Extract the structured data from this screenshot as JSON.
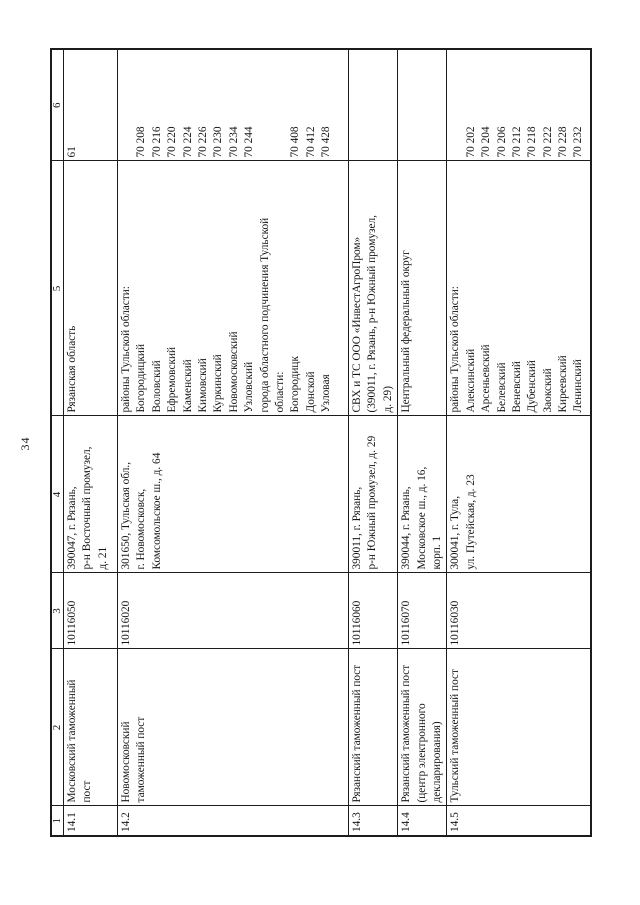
{
  "page": {
    "number": "34"
  },
  "table": {
    "headers": [
      "1",
      "2",
      "3",
      "4",
      "5",
      "6"
    ],
    "rows": [
      {
        "num": "14.1",
        "name_lines": [
          "Московский таможенный",
          "пост"
        ],
        "code": "10116050",
        "address_lines": [
          "390047, г. Рязань,",
          "р-н Восточный промузел,",
          "д. 21"
        ],
        "region_lines": [
          "Рязанская область"
        ],
        "okato_lines": [
          "61"
        ]
      },
      {
        "num": "14.2",
        "name_lines": [
          "Новомосковский",
          "таможенный пост"
        ],
        "code": "10116020",
        "address_lines": [
          "301650, Тульская обл.,",
          "г. Новомосковск,",
          "Комсомольское ш., д. 64"
        ],
        "region_lines": [
          "районы Тульской области:",
          "Богородицкий",
          "Воловский",
          "Ефремовский",
          "Каменский",
          "Кимовский",
          "Куркинский",
          "Новомосковский",
          "Узловский",
          "города областного подчинения Тульской",
          "области:",
          "Богородицк",
          "Донской",
          "Узловая"
        ],
        "okato_lines": [
          "",
          "70 208",
          "70 216",
          "70 220",
          "70 224",
          "70 226",
          "70 230",
          "70 234",
          "70 244",
          "",
          "",
          "70 408",
          "70 412",
          "70 428"
        ]
      },
      {
        "num": "14.3",
        "name_lines": [
          "Рязанский таможенный пост"
        ],
        "code": "10116060",
        "address_lines": [
          "390011, г. Рязань,",
          "р-н Южный промузел, д. 29"
        ],
        "region_lines": [
          "СВХ и ТС ООО «ИнвестАгроПром»",
          "(390011, г. Рязань, р-н Южный промузел,",
          "д. 29)"
        ],
        "okato_lines": []
      },
      {
        "num": "14.4",
        "name_lines": [
          "Рязанский таможенный пост",
          "(центр электронного",
          "декларирования)"
        ],
        "code": "10116070",
        "address_lines": [
          "390044, г. Рязань,",
          "Московское ш., д. 16,",
          "корп. 1"
        ],
        "region_lines": [
          "Центральный федеральный округ"
        ],
        "okato_lines": []
      },
      {
        "num": "14.5",
        "name_lines": [
          "Тульский таможенный пост"
        ],
        "code": "10116030",
        "address_lines": [
          "300041, г. Тула,",
          "ул. Путейская, д. 23"
        ],
        "region_lines": [
          "районы Тульской области:",
          "Алексинский",
          "Арсеньевский",
          "Белевский",
          "Веневский",
          "Дубенский",
          "Заокский",
          "Киреевский",
          "Ленинский"
        ],
        "okato_lines": [
          "",
          "70 202",
          "70 204",
          "70 206",
          "70 212",
          "70 218",
          "70 222",
          "70 228",
          "70 232"
        ]
      }
    ]
  }
}
